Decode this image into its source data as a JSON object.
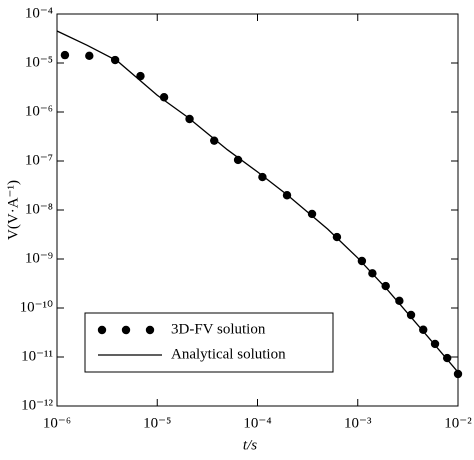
{
  "chart_data": {
    "type": "scatter",
    "x_label": "t/s",
    "y_label": "V(V·A⁻¹)",
    "xscale": "log",
    "yscale": "log",
    "xlim": [
      1e-06,
      0.01
    ],
    "ylim": [
      1e-12,
      0.0001
    ],
    "xticks": [
      {
        "value": 1e-06,
        "label": "10⁻⁶"
      },
      {
        "value": 1e-05,
        "label": "10⁻⁵"
      },
      {
        "value": 0.0001,
        "label": "10⁻⁴"
      },
      {
        "value": 0.001,
        "label": "10⁻³"
      },
      {
        "value": 0.01,
        "label": "10⁻²"
      }
    ],
    "yticks": [
      {
        "value": 1e-12,
        "label": "10⁻¹²"
      },
      {
        "value": 1e-11,
        "label": "10⁻¹¹"
      },
      {
        "value": 1e-10,
        "label": "10⁻¹⁰"
      },
      {
        "value": 1e-09,
        "label": "10⁻⁹"
      },
      {
        "value": 1e-08,
        "label": "10⁻⁸"
      },
      {
        "value": 1e-07,
        "label": "10⁻⁷"
      },
      {
        "value": 1e-06,
        "label": "10⁻⁶"
      },
      {
        "value": 1e-05,
        "label": "10⁻⁵"
      },
      {
        "value": 0.0001,
        "label": "10⁻⁴"
      }
    ],
    "legend": "bottom-left",
    "series": [
      {
        "name": "3D-FV solution",
        "kind": "points",
        "color": "#000",
        "x": [
          1.2e-06,
          2.1e-06,
          3.8e-06,
          6.8e-06,
          1.17e-05,
          2.1e-05,
          3.7e-05,
          6.4e-05,
          0.000112,
          0.000197,
          0.00035,
          0.00062,
          0.0011,
          0.0014,
          0.0019,
          0.0026,
          0.0034,
          0.0045,
          0.0059,
          0.0078,
          0.01
        ],
        "values": [
          1.45e-05,
          1.4e-05,
          1.15e-05,
          5.4e-06,
          2e-06,
          7.2e-07,
          2.6e-07,
          1.05e-07,
          4.7e-08,
          2e-08,
          8.3e-09,
          2.8e-09,
          9.1e-10,
          5.1e-10,
          2.8e-10,
          1.4e-10,
          7.2e-11,
          3.6e-11,
          1.85e-11,
          9.5e-12,
          4.5e-12
        ]
      },
      {
        "name": "Analytical solution",
        "kind": "line",
        "color": "#000",
        "x": [
          1e-06,
          2e-06,
          4e-06,
          1e-05,
          2e-05,
          5e-05,
          0.0001,
          0.0002,
          0.0005,
          0.001,
          0.002,
          0.005,
          0.01
        ],
        "values": [
          4.5e-05,
          2.3e-05,
          1.1e-05,
          2.2e-06,
          7.9e-07,
          1.7e-07,
          6e-08,
          2e-08,
          4.1e-09,
          1.05e-09,
          2.3e-10,
          2.6e-11,
          4.9e-12
        ]
      }
    ]
  }
}
